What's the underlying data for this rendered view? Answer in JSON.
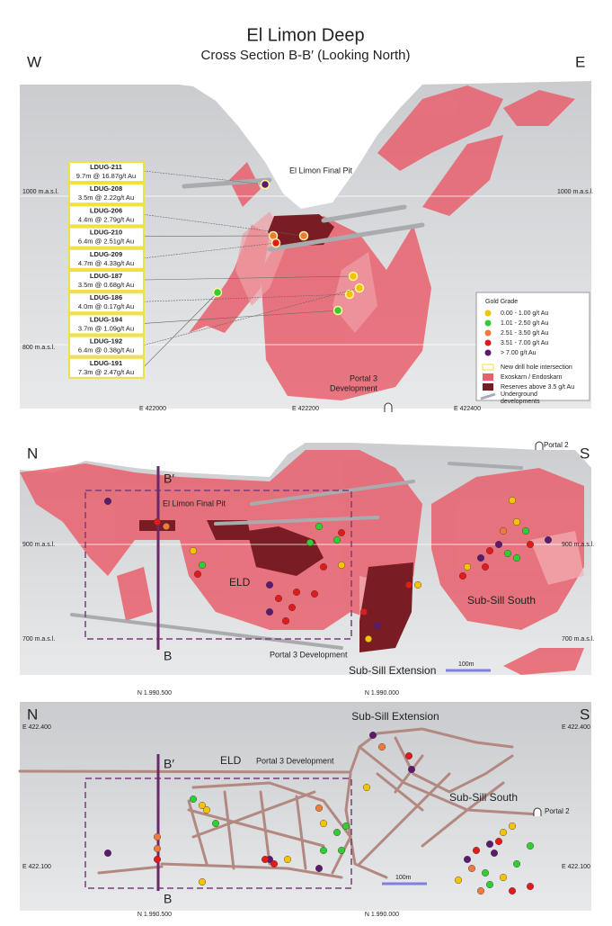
{
  "header": {
    "title": "El Limon Deep",
    "subtitle": "Cross Section B-B′ (Looking North)"
  },
  "panel1": {
    "left": "W",
    "right": "E",
    "elev_left": [
      "1000 m.a.s.l.",
      "800 m.a.s.l."
    ],
    "elev_right": [
      "1000 m.a.s.l."
    ],
    "pit_label": "El Limon Final Pit",
    "portal": [
      "Portal 3",
      "Development"
    ],
    "eastings": [
      "E 422000",
      "E 422200",
      "E 422400"
    ],
    "drill_holes": [
      {
        "id": "LDUG-211",
        "result": "9.7m @ 16.87g/t Au",
        "grade": 4
      },
      {
        "id": "LDUG-208",
        "result": "3.5m @ 2.22g/t Au",
        "grade": 1
      },
      {
        "id": "LDUG-206",
        "result": "4.4m @ 2.79g/t Au",
        "grade": 2
      },
      {
        "id": "LDUG-210",
        "result": "6.4m @ 2.51g/t Au",
        "grade": 2
      },
      {
        "id": "LDUG-209",
        "result": "4.7m @ 4.33g/t Au",
        "grade": 3
      },
      {
        "id": "LDUG-187",
        "result": "3.5m @ 0.68g/t Au",
        "grade": 0
      },
      {
        "id": "LDUG-186",
        "result": "4.0m @ 0.17g/t Au",
        "grade": 0
      },
      {
        "id": "LDUG-194",
        "result": "3.7m @ 1.09g/t Au",
        "grade": 1
      },
      {
        "id": "LDUG-192",
        "result": "6.4m @ 0.38g/t Au",
        "grade": 0
      },
      {
        "id": "LDUG-191",
        "result": "7.3m @ 2.47g/t Au",
        "grade": 1
      }
    ],
    "legend": {
      "title": "Gold Grade",
      "grades": [
        {
          "label": "0.00 - 1.00 g/t Au",
          "color": "#f5c400"
        },
        {
          "label": "1.01 - 2.50 g/t Au",
          "color": "#33cc33"
        },
        {
          "label": "2.51 - 3.50 g/t Au",
          "color": "#f07a3a"
        },
        {
          "label": "3.51 - 7.00 g/t Au",
          "color": "#e31a1c"
        },
        {
          "label": "> 7.00 g/t Au",
          "color": "#5b1a6e"
        }
      ],
      "new_hole": "New drill hole intersection",
      "skarn": "Exoskarn / Endoskarn",
      "reserves": "Reserves above 3.5 g/t Au",
      "underground": [
        "Underground",
        "developments"
      ]
    }
  },
  "panel2": {
    "left": "N",
    "right": "S",
    "b_top": "B′",
    "b_bottom": "B",
    "pit_label": "El Limon Final Pit",
    "elev_left": [
      "900 m.a.s.l.",
      "700 m.a.s.l."
    ],
    "elev_right": [
      "900 m.a.s.l.",
      "700 m.a.s.l."
    ],
    "eld": "ELD",
    "sub_sill_south": "Sub-Sill South",
    "portal3": "Portal 3  Development",
    "sub_sill_extension": "Sub-Sill Extension",
    "scale": "100m",
    "portal2": "Portal 2",
    "northings": [
      "N 1.990.500",
      "N 1.990.000"
    ]
  },
  "panel3": {
    "left": "N",
    "right": "S",
    "title": "Sub-Sill Extension",
    "eastings_left": [
      "E 422.400",
      "E 422.100"
    ],
    "eastings_right": [
      "E 422.400",
      "E 422.100"
    ],
    "eld": "ELD",
    "portal3": "Portal 3  Development",
    "b_top": "B′",
    "b_bottom": "B",
    "sub_sill_south": "Sub-Sill South",
    "portal2": "Portal 2",
    "scale": "100m",
    "northings": [
      "N 1.990.500",
      "N 1.990.000"
    ]
  }
}
